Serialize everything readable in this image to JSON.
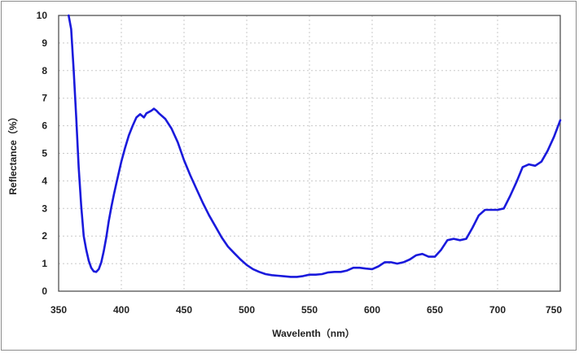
{
  "chart_data": {
    "type": "line",
    "title": "",
    "xlabel": "Wavelenth（nm）",
    "ylabel": "Reflectance（%）",
    "xlim": [
      350,
      750
    ],
    "ylim": [
      0,
      10
    ],
    "x_ticks": [
      "350",
      "400",
      "450",
      "500",
      "550",
      "600",
      "650",
      "700",
      "750"
    ],
    "y_ticks": [
      "0",
      "1",
      "2",
      "3",
      "4",
      "5",
      "6",
      "7",
      "8",
      "9",
      "10"
    ],
    "grid": true,
    "grid_style": "dotted",
    "legend": "none",
    "colors": {
      "series": "#1a1adc",
      "grid": "#c8c8c8",
      "axis": "#444444"
    },
    "series": [
      {
        "x": [
          358,
          360,
          362,
          364,
          366,
          368,
          370,
          372,
          374,
          376,
          378,
          380,
          382,
          384,
          386,
          388,
          390,
          392,
          394,
          396,
          398,
          400,
          403,
          406,
          409,
          412,
          415,
          418,
          420,
          422,
          424,
          426,
          428,
          430,
          435,
          440,
          445,
          450,
          455,
          460,
          465,
          470,
          475,
          480,
          485,
          490,
          495,
          500,
          505,
          510,
          515,
          520,
          525,
          530,
          535,
          540,
          545,
          550,
          555,
          560,
          565,
          570,
          575,
          580,
          585,
          590,
          595,
          600,
          605,
          610,
          615,
          620,
          625,
          630,
          635,
          640,
          645,
          650,
          655,
          660,
          665,
          670,
          675,
          680,
          685,
          690,
          695,
          700,
          705,
          710,
          715,
          720,
          725,
          730,
          735,
          740,
          745,
          750
        ],
        "y": [
          10.0,
          9.5,
          8.0,
          6.3,
          4.5,
          3.1,
          2.0,
          1.5,
          1.1,
          0.85,
          0.72,
          0.7,
          0.8,
          1.05,
          1.45,
          1.95,
          2.55,
          3.05,
          3.5,
          3.9,
          4.3,
          4.7,
          5.2,
          5.65,
          6.0,
          6.3,
          6.42,
          6.3,
          6.45,
          6.5,
          6.55,
          6.62,
          6.55,
          6.45,
          6.25,
          5.9,
          5.4,
          4.75,
          4.2,
          3.7,
          3.2,
          2.75,
          2.35,
          1.95,
          1.62,
          1.38,
          1.15,
          0.95,
          0.8,
          0.7,
          0.62,
          0.58,
          0.56,
          0.54,
          0.52,
          0.52,
          0.55,
          0.6,
          0.6,
          0.62,
          0.68,
          0.7,
          0.7,
          0.75,
          0.85,
          0.85,
          0.82,
          0.8,
          0.9,
          1.05,
          1.05,
          1.0,
          1.05,
          1.15,
          1.3,
          1.35,
          1.25,
          1.25,
          1.5,
          1.85,
          1.9,
          1.85,
          1.9,
          2.3,
          2.75,
          2.95,
          2.95,
          2.95,
          3.0,
          3.45,
          3.95,
          4.5,
          4.6,
          4.55,
          4.7,
          5.1,
          5.6,
          6.2
        ]
      }
    ]
  }
}
